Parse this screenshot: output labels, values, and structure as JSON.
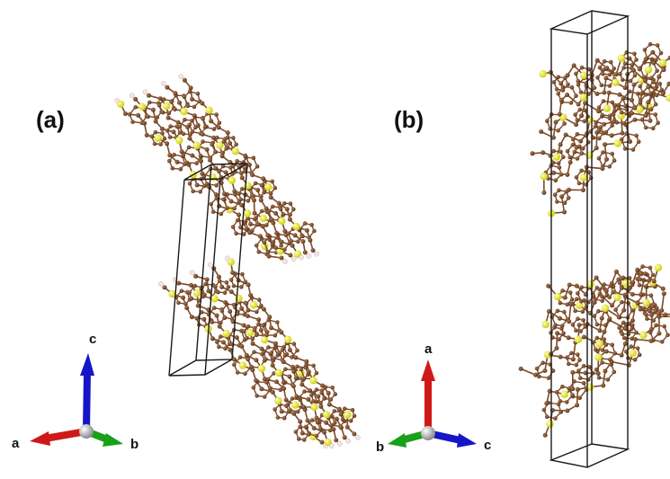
{
  "panels": [
    {
      "label": "(a)",
      "axes": [
        {
          "label": "c",
          "color": "#1515c8",
          "icon": "blue-arrow"
        },
        {
          "label": "a",
          "color": "#d01818",
          "icon": "red-arrow"
        },
        {
          "label": "b",
          "color": "#18a018",
          "icon": "green-arrow"
        }
      ]
    },
    {
      "label": "(b)",
      "axes": [
        {
          "label": "a",
          "color": "#d01818",
          "icon": "red-arrow"
        },
        {
          "label": "b",
          "color": "#18a018",
          "icon": "green-arrow"
        },
        {
          "label": "c",
          "color": "#1515c8",
          "icon": "blue-arrow"
        }
      ]
    }
  ],
  "colors": {
    "carbon": "#7a4a2a",
    "sulfur": "#e6e62a",
    "hydrogen": "#f2e6e6",
    "cell_edge": "#1a1a1a"
  }
}
